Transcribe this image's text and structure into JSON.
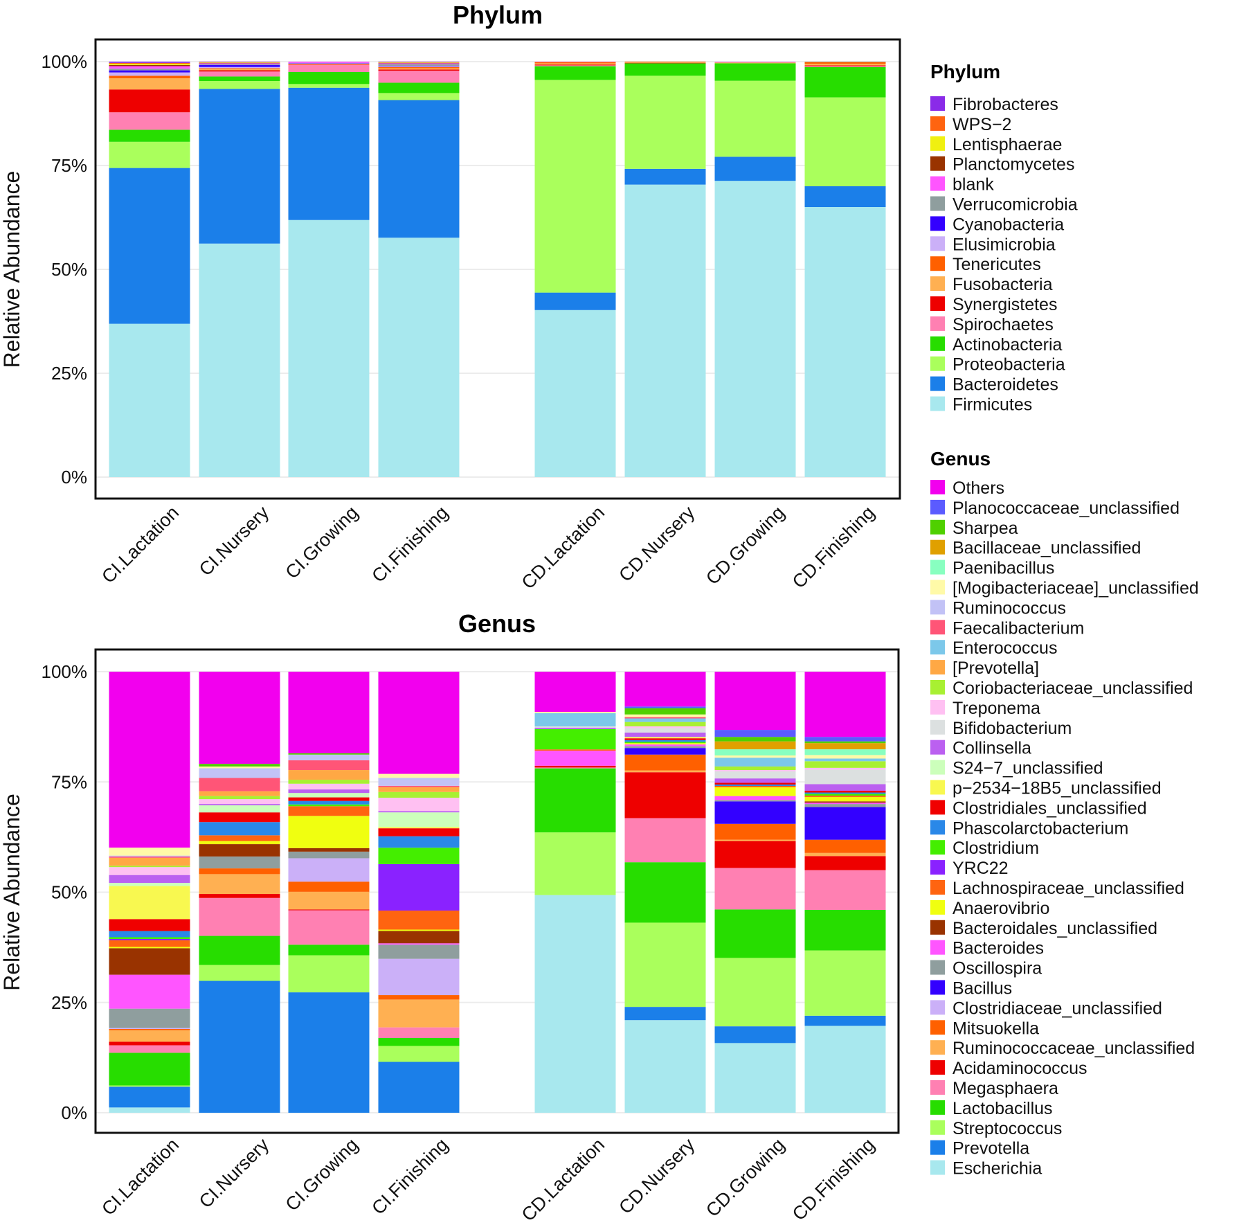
{
  "chart_data": [
    {
      "type": "bar",
      "stacked": true,
      "title": "Phylum",
      "ylabel": "Relative Abundance",
      "xlabel": "",
      "ylim": [
        0,
        100
      ],
      "yticks": [
        "0%",
        "25%",
        "50%",
        "75%",
        "100%"
      ],
      "grid": true,
      "legend_title": "Phylum",
      "legend_position": "right",
      "categories": [
        "CI.Lactation",
        "CI.Nursery",
        "CI.Growing",
        "CI.Finishing",
        "CD.Lactation",
        "CD.Nursery",
        "CD.Growing",
        "CD.Finishing"
      ],
      "series": [
        {
          "name": "Firmicutes",
          "color": "#a8e8ee",
          "values": [
            36.9,
            56.6,
            62.0,
            57.9,
            40.2,
            70.4,
            71.3,
            65.0
          ]
        },
        {
          "name": "Bacteroidetes",
          "color": "#1b7fe9",
          "values": [
            37.5,
            37.5,
            31.9,
            33.3,
            4.2,
            3.8,
            5.8,
            5.0
          ]
        },
        {
          "name": "Proteobacteria",
          "color": "#aaff5c",
          "values": [
            6.3,
            1.9,
            0.9,
            1.7,
            51.2,
            22.4,
            18.3,
            21.4
          ]
        },
        {
          "name": "Actinobacteria",
          "color": "#27dd00",
          "values": [
            2.9,
            1.1,
            2.9,
            2.5,
            3.3,
            3.0,
            4.2,
            7.3
          ]
        },
        {
          "name": "Spirochaetes",
          "color": "#ff80b2",
          "values": [
            4.2,
            1.2,
            1.7,
            2.9,
            0.2,
            0,
            0,
            0.2
          ]
        },
        {
          "name": "Synergistetes",
          "color": "#ee0000",
          "values": [
            5.5,
            0.3,
            0.1,
            0.3,
            0.2,
            0.1,
            0,
            0.2
          ]
        },
        {
          "name": "Fusobacteria",
          "color": "#ffb052",
          "values": [
            2.7,
            0.3,
            0.1,
            0.3,
            0.3,
            0.1,
            0.1,
            0.4
          ]
        },
        {
          "name": "Tenericutes",
          "color": "#ff6000",
          "values": [
            0.6,
            0.2,
            0.1,
            0.3,
            0.3,
            0.2,
            0.1,
            0.4
          ]
        },
        {
          "name": "Elusimicrobia",
          "color": "#cbb0f8",
          "values": [
            0.8,
            0.3,
            0.1,
            0.2,
            0,
            0,
            0.1,
            0
          ]
        },
        {
          "name": "Cyanobacteria",
          "color": "#3300ff",
          "values": [
            0.5,
            0.5,
            0.1,
            0.1,
            0,
            0,
            0,
            0
          ]
        },
        {
          "name": "Verrucomicrobia",
          "color": "#8f9e9e",
          "values": [
            0.4,
            0.2,
            0,
            0.4,
            0,
            0,
            0,
            0.1
          ]
        },
        {
          "name": "blank",
          "color": "#ff55ff",
          "values": [
            0.6,
            0.2,
            0.3,
            0.2,
            0.1,
            0,
            0.1,
            0
          ]
        },
        {
          "name": "Planctomycetes",
          "color": "#993300",
          "values": [
            0.3,
            0.1,
            0,
            0.1,
            0,
            0,
            0,
            0
          ]
        },
        {
          "name": "Lentisphaerae",
          "color": "#f0f010",
          "values": [
            0.3,
            0.1,
            0,
            0.1,
            0,
            0,
            0,
            0
          ]
        },
        {
          "name": "WPS−2",
          "color": "#ff6410",
          "values": [
            0.2,
            0.1,
            0,
            0.1,
            0,
            0,
            0,
            0
          ]
        },
        {
          "name": "Fibrobacteres",
          "color": "#8a2be8",
          "values": [
            0.3,
            0.1,
            0,
            0.1,
            0,
            0,
            0,
            0
          ]
        }
      ]
    },
    {
      "type": "bar",
      "stacked": true,
      "title": "Genus",
      "ylabel": "Relative Abundance",
      "xlabel": "",
      "ylim": [
        0,
        100
      ],
      "yticks": [
        "0%",
        "25%",
        "50%",
        "75%",
        "100%"
      ],
      "grid": true,
      "legend_title": "Genus",
      "legend_position": "right",
      "categories": [
        "CI.Lactation",
        "CI.Nursery",
        "CI.Growing",
        "CI.Finishing",
        "CD.Lactation",
        "CD.Nursery",
        "CD.Growing",
        "CD.Finishing"
      ],
      "series": [
        {
          "name": "Escherichia",
          "color": "#a8e8ee",
          "values": [
            1.2,
            0,
            0,
            0,
            49.3,
            21.0,
            15.8,
            19.7
          ]
        },
        {
          "name": "Prevotella",
          "color": "#1b7fe9",
          "values": [
            4.7,
            29.9,
            27.3,
            11.5,
            0,
            3.0,
            3.8,
            2.3
          ]
        },
        {
          "name": "Streptococcus",
          "color": "#aaff5c",
          "values": [
            0.3,
            3.6,
            8.4,
            3.6,
            14.2,
            19.1,
            15.5,
            14.8
          ]
        },
        {
          "name": "Lactobacillus",
          "color": "#27dd00",
          "values": [
            7.4,
            6.6,
            2.4,
            1.8,
            14.5,
            13.7,
            11.0,
            9.2
          ]
        },
        {
          "name": "Megasphaera",
          "color": "#ff80b2",
          "values": [
            1.7,
            8.6,
            7.8,
            2.4,
            0.2,
            10.0,
            9.4,
            9.0
          ]
        },
        {
          "name": "Acidaminococcus",
          "color": "#ee0000",
          "values": [
            0.8,
            0.9,
            0.2,
            0,
            0.4,
            10.4,
            6.1,
            3.2
          ]
        },
        {
          "name": "Ruminococcaceae_unclassified",
          "color": "#ffb052",
          "values": [
            2.6,
            4.5,
            4.0,
            6.3,
            0,
            0.4,
            0.3,
            0.7
          ]
        },
        {
          "name": "Mitsuokella",
          "color": "#ff6000",
          "values": [
            0.3,
            1.3,
            2.3,
            1.0,
            0,
            3.6,
            3.6,
            3.0
          ]
        },
        {
          "name": "Clostridiaceae_unclassified",
          "color": "#cbb0f8",
          "values": [
            0.2,
            0,
            5.3,
            8.2,
            0,
            0,
            0,
            0
          ]
        },
        {
          "name": "Bacillus",
          "color": "#3300ff",
          "values": [
            0,
            0,
            0,
            0,
            0,
            1.5,
            5.1,
            7.4
          ]
        },
        {
          "name": "Oscillospira",
          "color": "#8f9e9e",
          "values": [
            4.4,
            2.7,
            1.5,
            3.2,
            0,
            0.4,
            0.3,
            0.7
          ]
        },
        {
          "name": "Bacteroides",
          "color": "#ff55ff",
          "values": [
            7.7,
            0,
            0,
            0.3,
            3.4,
            0.4,
            0.9,
            0.3
          ]
        },
        {
          "name": "Bacteroidales_unclassified",
          "color": "#993300",
          "values": [
            6.0,
            2.8,
            0.8,
            2.8,
            0,
            0,
            0,
            0.3
          ]
        },
        {
          "name": "Anaerovibrio",
          "color": "#f0ff10",
          "values": [
            0.3,
            0.7,
            7.3,
            0.3,
            0,
            0.3,
            2.0,
            1.0
          ]
        },
        {
          "name": "Lachnospiraceae_unclassified",
          "color": "#ff6410",
          "values": [
            1.5,
            1.3,
            2.2,
            4.3,
            0.3,
            0,
            0.3,
            0.3
          ]
        },
        {
          "name": "YRC22",
          "color": "#8a22ff",
          "values": [
            0.3,
            0,
            0,
            10.5,
            0,
            0,
            0,
            0
          ]
        },
        {
          "name": "Clostridium",
          "color": "#44ee00",
          "values": [
            0.4,
            0,
            0.4,
            3.7,
            4.6,
            0.3,
            0,
            0.4
          ]
        },
        {
          "name": "Phascolarctobacterium",
          "color": "#2a88e8",
          "values": [
            1.4,
            3.0,
            0.8,
            2.6,
            0,
            0.4,
            0.3,
            0.3
          ]
        },
        {
          "name": "Clostridiales_unclassified",
          "color": "#f00000",
          "values": [
            2.7,
            2.2,
            0.8,
            1.8,
            0,
            0.4,
            0.4,
            0.4
          ]
        },
        {
          "name": "p−2534−18B5_unclassified",
          "color": "#f8f850",
          "values": [
            7.5,
            0,
            0,
            0.3,
            0,
            0.3,
            0,
            0
          ]
        },
        {
          "name": "S24−7_unclassified",
          "color": "#ccffbb",
          "values": [
            0.7,
            1.6,
            1.0,
            3.3,
            0,
            0,
            0,
            0
          ]
        },
        {
          "name": "Collinsella",
          "color": "#bb60f0",
          "values": [
            1.8,
            0.3,
            0.8,
            0.3,
            0.3,
            1.0,
            1.0,
            1.5
          ]
        },
        {
          "name": "Bifidobacterium",
          "color": "#dce0e0",
          "values": [
            0,
            0,
            0,
            0,
            0.3,
            1.0,
            1.6,
            3.3
          ]
        },
        {
          "name": "Treponema",
          "color": "#ffc0f2",
          "values": [
            1.8,
            1.1,
            1.3,
            3.0,
            0,
            0.4,
            0.3,
            0.4
          ]
        },
        {
          "name": "Coriobacteriaceae_unclassified",
          "color": "#a8f032",
          "values": [
            0.3,
            0.7,
            0.9,
            1.3,
            0,
            1.0,
            0.8,
            1.5
          ]
        },
        {
          "name": "[Prevotella]",
          "color": "#ffa844",
          "values": [
            1.8,
            1.1,
            2.2,
            1.1,
            0,
            0,
            0,
            0
          ]
        },
        {
          "name": "Enterococcus",
          "color": "#7cc8ea",
          "values": [
            0,
            0,
            0,
            0,
            3.0,
            0.8,
            2.0,
            0.6
          ]
        },
        {
          "name": "Faecalibacterium",
          "color": "#ff5577",
          "values": [
            0.3,
            3.0,
            2.2,
            0.3,
            0,
            0.3,
            0,
            0
          ]
        },
        {
          "name": "Ruminococcus",
          "color": "#c2c2f6",
          "values": [
            0.2,
            2.2,
            1.3,
            1.8,
            0,
            0,
            0,
            0
          ]
        },
        {
          "name": "[Mogibacteriaceae]_unclassified",
          "color": "#fffaa8",
          "values": [
            1.8,
            0.4,
            0,
            0.9,
            0.3,
            0.6,
            0.5,
            0.8
          ]
        },
        {
          "name": "Paenibacillus",
          "color": "#88ffc0",
          "values": [
            0,
            0,
            0,
            0,
            0,
            0,
            1.4,
            1.3
          ]
        },
        {
          "name": "Bacillaceae_unclassified",
          "color": "#e0a000",
          "values": [
            0,
            0,
            0,
            0,
            0,
            0,
            1.8,
            1.4
          ]
        },
        {
          "name": "Sharpea",
          "color": "#4fd000",
          "values": [
            0,
            0.6,
            0.3,
            0,
            0,
            1.4,
            1.0,
            0.4
          ]
        },
        {
          "name": "Planococcaceae_unclassified",
          "color": "#5b5bff",
          "values": [
            0,
            0,
            0,
            0,
            0,
            0.4,
            1.6,
            1.0
          ]
        },
        {
          "name": "Others",
          "color": "#f200ee",
          "values": [
            39.9,
            20.9,
            18.5,
            23.1,
            9.1,
            7.9,
            13.2,
            14.8
          ]
        }
      ]
    }
  ]
}
